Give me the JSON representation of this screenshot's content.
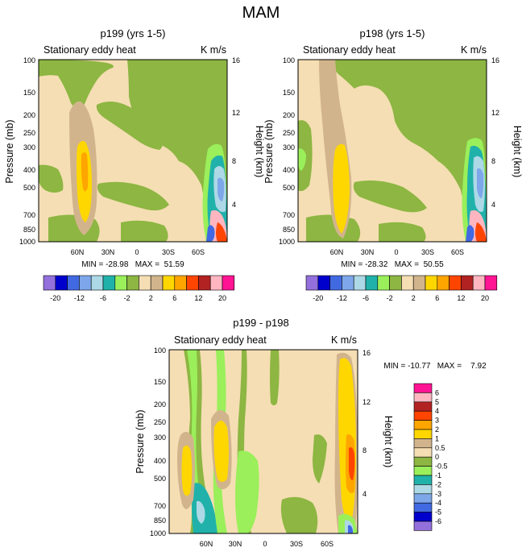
{
  "page_title": "MAM",
  "plot_common": {
    "subtitle_left": "Stationary eddy heat",
    "units": "K m/s",
    "ylabel_left": "Pressure (mb)",
    "ylabel_right": "Height (km)",
    "pressure_ticks": [
      "100",
      "150",
      "200",
      "250",
      "300",
      "400",
      "500",
      "700",
      "850",
      "1000"
    ],
    "height_ticks": [
      "16",
      "12",
      "8",
      "4"
    ],
    "lat_ticks": [
      "60N",
      "30N",
      "0",
      "30S",
      "60S"
    ]
  },
  "colorbar_top": {
    "labels": [
      "-20",
      "-12",
      "-6",
      "-2",
      "2",
      "6",
      "12",
      "20"
    ],
    "colors": [
      "#9370DB",
      "#0000CD",
      "#4169E1",
      "#7EA7EA",
      "#ADD8E6",
      "#20B2AA",
      "#9AEF5A",
      "#8DB642",
      "#F5DEB3",
      "#D2B48C",
      "#FFD700",
      "#FFA500",
      "#FF4500",
      "#B22222",
      "#FFB6C1",
      "#FF1493"
    ]
  },
  "colorbar_diff": {
    "labels": [
      "6",
      "5",
      "4",
      "3",
      "2",
      "1",
      "0.5",
      "0",
      "-0.5",
      "-1",
      "-2",
      "-3",
      "-4",
      "-5",
      "-6"
    ],
    "colors": [
      "#FF1493",
      "#FFB6C1",
      "#B22222",
      "#FF4500",
      "#FFA500",
      "#FFD700",
      "#D2B48C",
      "#F5DEB3",
      "#8DB642",
      "#9AEF5A",
      "#20B2AA",
      "#ADD8E6",
      "#7EA7EA",
      "#4169E1",
      "#0000CD",
      "#9370DB"
    ]
  },
  "chart_data": [
    {
      "type": "heatmap",
      "title": "p199 (yrs 1-5)",
      "subtitle": "Stationary eddy heat",
      "units": "K m/s",
      "xlabel": "",
      "ylabel": "Pressure (mb)",
      "ylabel_right": "Height (km)",
      "x_ticks": [
        "60N",
        "30N",
        "0",
        "30S",
        "60S"
      ],
      "y_ticks": [
        "100",
        "150",
        "200",
        "250",
        "300",
        "400",
        "500",
        "700",
        "850",
        "1000"
      ],
      "y2_ticks": [
        "16",
        "12",
        "8",
        "4"
      ],
      "stats": "MIN = -28.98   MAX =  51.59",
      "min": -28.98,
      "max": 51.59
    },
    {
      "type": "heatmap",
      "title": "p198 (yrs 1-5)",
      "subtitle": "Stationary eddy heat",
      "units": "K m/s",
      "xlabel": "",
      "ylabel": "Pressure (mb)",
      "ylabel_right": "Height (km)",
      "x_ticks": [
        "60N",
        "30N",
        "0",
        "30S",
        "60S"
      ],
      "y_ticks": [
        "100",
        "150",
        "200",
        "250",
        "300",
        "400",
        "500",
        "700",
        "850",
        "1000"
      ],
      "y2_ticks": [
        "16",
        "12",
        "8",
        "4"
      ],
      "stats": "MIN = -28.32   MAX =  50.55",
      "min": -28.32,
      "max": 50.55
    },
    {
      "type": "heatmap",
      "title": "p199 - p198",
      "subtitle": "Stationary eddy heat",
      "units": "K m/s",
      "xlabel": "",
      "ylabel": "Pressure (mb)",
      "ylabel_right": "Height (km)",
      "x_ticks": [
        "60N",
        "30N",
        "0",
        "30S",
        "60S"
      ],
      "y_ticks": [
        "100",
        "150",
        "200",
        "250",
        "300",
        "400",
        "500",
        "700",
        "850",
        "1000"
      ],
      "y2_ticks": [
        "16",
        "12",
        "8",
        "4"
      ],
      "stats": "MIN = -10.77   MAX =    7.92",
      "min": -10.77,
      "max": 7.92
    }
  ]
}
